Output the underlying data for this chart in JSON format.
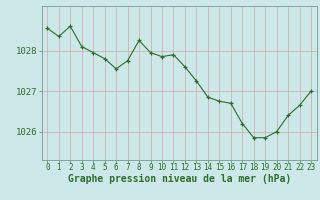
{
  "x": [
    0,
    1,
    2,
    3,
    4,
    5,
    6,
    7,
    8,
    9,
    10,
    11,
    12,
    13,
    14,
    15,
    16,
    17,
    18,
    19,
    20,
    21,
    22,
    23
  ],
  "y": [
    1028.55,
    1028.35,
    1028.6,
    1028.1,
    1027.95,
    1027.8,
    1027.55,
    1027.75,
    1028.25,
    1027.95,
    1027.85,
    1027.9,
    1027.6,
    1027.25,
    1026.85,
    1026.75,
    1026.7,
    1026.2,
    1025.85,
    1025.85,
    1026.0,
    1026.4,
    1026.65,
    1027.0
  ],
  "line_color": "#2d6e2d",
  "marker_color": "#2d6e2d",
  "bg_color": "#cce8e8",
  "grid_color_minor": "#bbcccc",
  "grid_color_major": "#aabbbb",
  "title": "Graphe pression niveau de la mer (hPa)",
  "ylabel_labels": [
    1026,
    1027,
    1028
  ],
  "ytick_fontsize": 6.5,
  "xtick_fontsize": 5.5,
  "title_fontsize": 7,
  "ylim": [
    1025.3,
    1029.1
  ],
  "xlim": [
    -0.5,
    23.5
  ],
  "border_color": "#779999"
}
